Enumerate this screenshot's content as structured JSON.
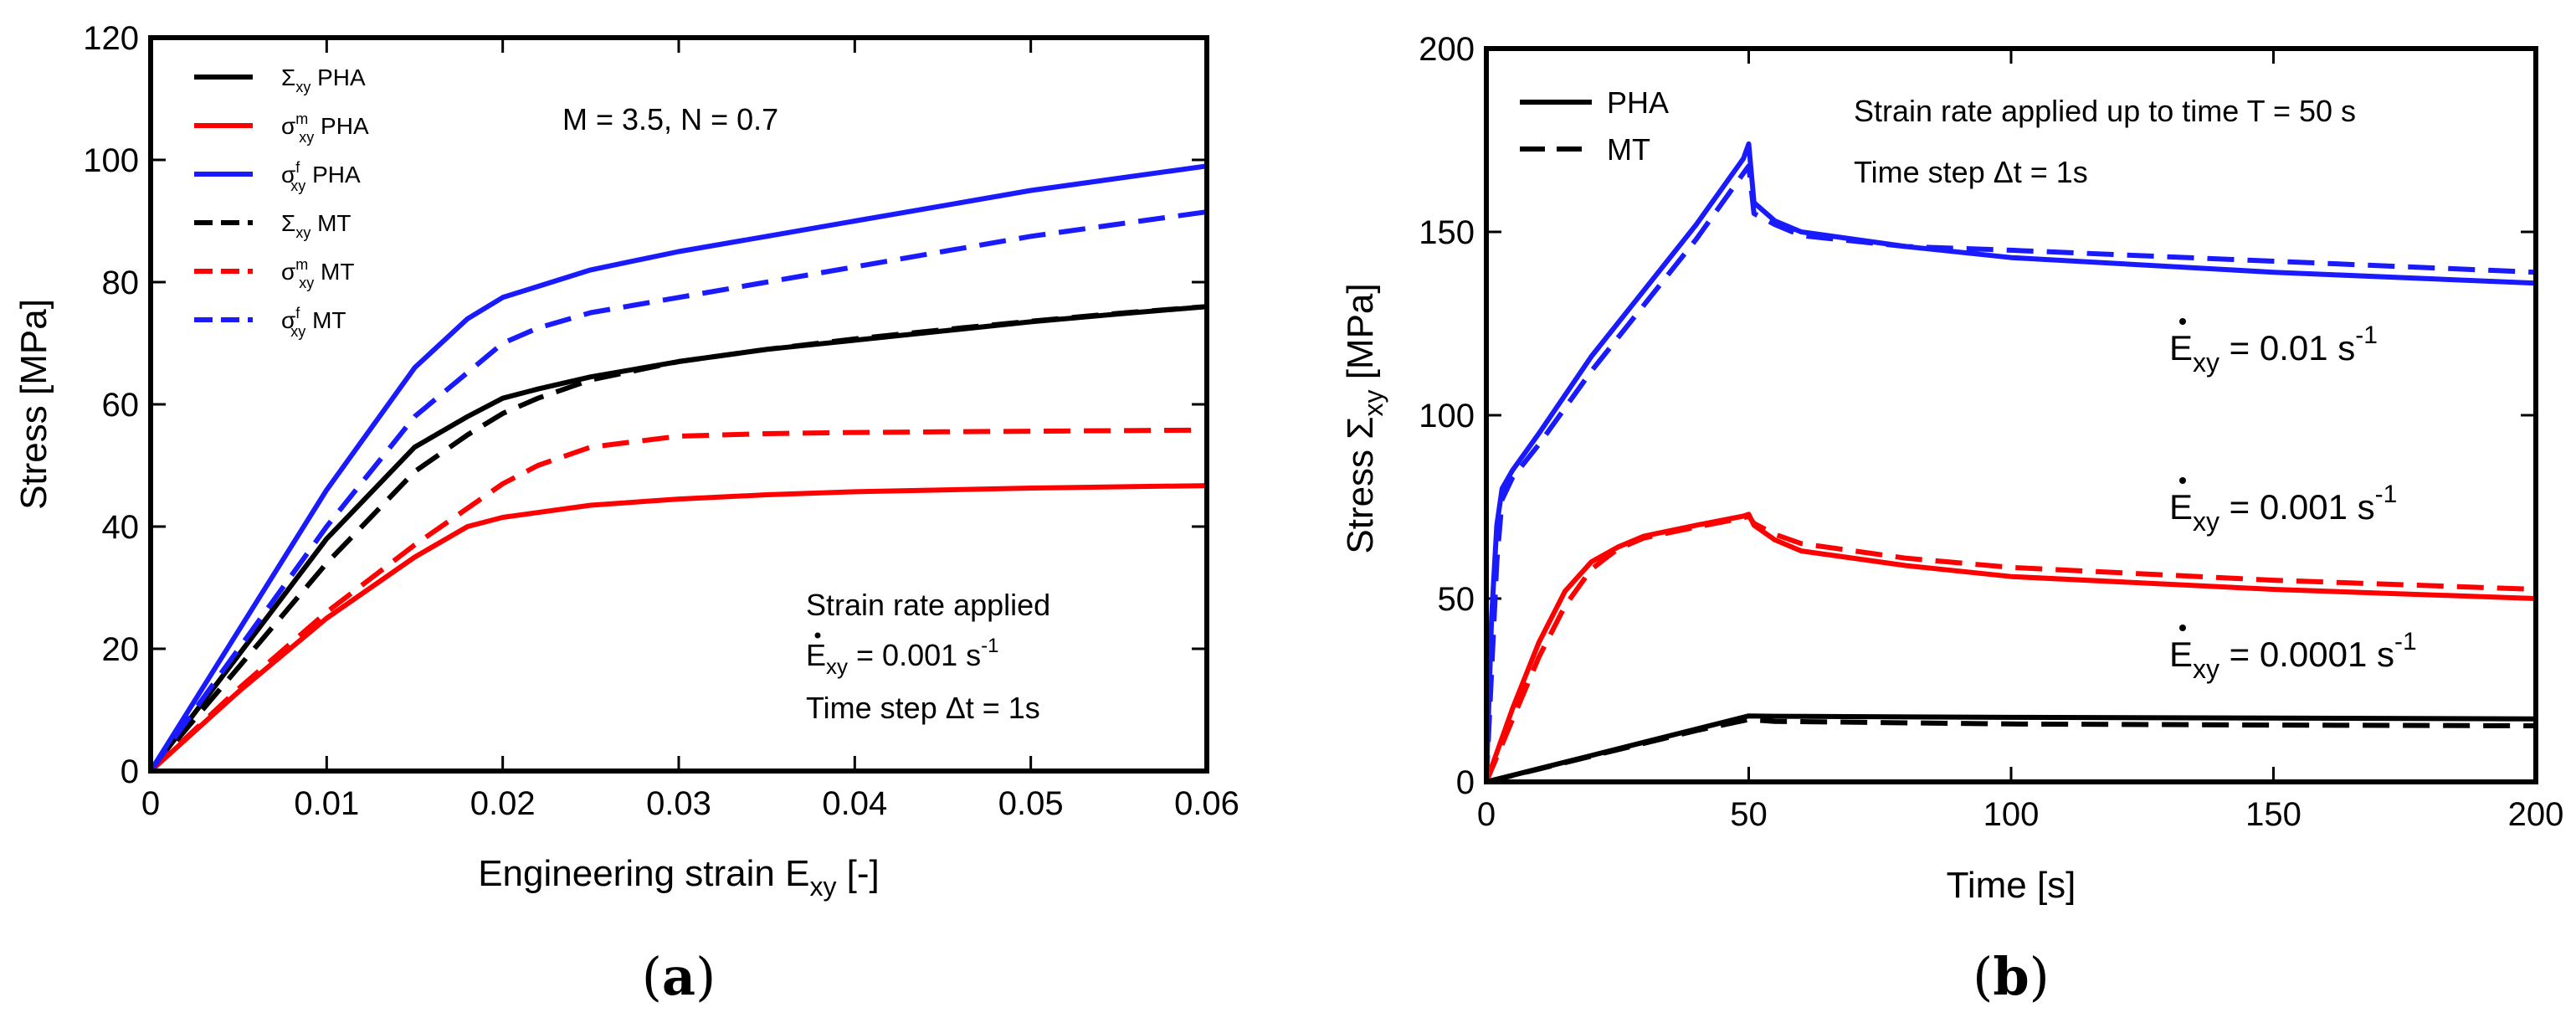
{
  "colors": {
    "black": "#000000",
    "red": "#ff0000",
    "blue": "#1a1aff"
  },
  "chart_data": [
    {
      "type": "line",
      "panel": "a",
      "panel_label": "(a)",
      "panel_letter": "a",
      "xlabel": "Engineering strain E",
      "xlabel_sub": "xy",
      "xlabel_suffix": " [-]",
      "ylabel": "Stress [MPa]",
      "xlim": [
        0,
        0.06
      ],
      "ylim": [
        0,
        120
      ],
      "xticks": [
        0,
        0.01,
        0.02,
        0.03,
        0.04,
        0.05,
        0.06
      ],
      "xtick_labels": [
        "0",
        "0.01",
        "0.02",
        "0.03",
        "0.04",
        "0.05",
        "0.06"
      ],
      "yticks": [
        0,
        20,
        40,
        60,
        80,
        100,
        120
      ],
      "ytick_labels": [
        "0",
        "20",
        "40",
        "60",
        "80",
        "100",
        "120"
      ],
      "annotations": {
        "params": "M = 3.5, N = 0.7",
        "rate_title": "Strain rate applied",
        "rate_symbol": "E",
        "rate_sub": "xy",
        "rate_value": " = 0.001 s",
        "rate_exp": "-1",
        "timestep": "Time step Δt = 1s"
      },
      "series": [
        {
          "name": "Σxy PHA",
          "sym": "Σ",
          "sup": "",
          "sub": "xy",
          "label": "PHA",
          "color": "black",
          "dash": "solid",
          "x": [
            0,
            0.005,
            0.01,
            0.015,
            0.018,
            0.02,
            0.022,
            0.025,
            0.03,
            0.035,
            0.04,
            0.045,
            0.05,
            0.055,
            0.06
          ],
          "y": [
            0,
            19,
            38,
            53,
            58,
            61,
            62.5,
            64.5,
            67,
            69,
            70.5,
            72,
            73.5,
            74.8,
            76
          ]
        },
        {
          "name": "σxy^m PHA",
          "sym": "σ",
          "sup": "m",
          "sub": "xy",
          "label": "PHA",
          "color": "red",
          "dash": "solid",
          "x": [
            0,
            0.005,
            0.01,
            0.015,
            0.018,
            0.02,
            0.025,
            0.03,
            0.035,
            0.04,
            0.045,
            0.05,
            0.055,
            0.06
          ],
          "y": [
            0,
            13,
            25,
            35,
            40,
            41.5,
            43.5,
            44.5,
            45.2,
            45.7,
            46,
            46.3,
            46.5,
            46.7
          ]
        },
        {
          "name": "σxy^f PHA",
          "sym": "σ",
          "sup": "f",
          "sub": "xy",
          "label": "PHA",
          "color": "blue",
          "dash": "solid",
          "x": [
            0,
            0.005,
            0.01,
            0.015,
            0.018,
            0.02,
            0.025,
            0.03,
            0.035,
            0.04,
            0.045,
            0.05,
            0.055,
            0.06
          ],
          "y": [
            0,
            23,
            46,
            66,
            74,
            77.5,
            82,
            85,
            87.5,
            90,
            92.5,
            95,
            97,
            99
          ]
        },
        {
          "name": "Σxy MT",
          "sym": "Σ",
          "sup": "",
          "sub": "xy",
          "label": "MT",
          "color": "black",
          "dash": "dashed",
          "x": [
            0,
            0.005,
            0.01,
            0.015,
            0.018,
            0.02,
            0.022,
            0.025,
            0.03,
            0.035,
            0.04,
            0.045,
            0.05,
            0.055,
            0.06
          ],
          "y": [
            0,
            17,
            34,
            49,
            55,
            58.5,
            61,
            64,
            67,
            69,
            70.7,
            72.2,
            73.6,
            74.9,
            76
          ]
        },
        {
          "name": "σxy^m MT",
          "sym": "σ",
          "sup": "m",
          "sub": "xy",
          "label": "MT",
          "color": "red",
          "dash": "dashed",
          "x": [
            0,
            0.005,
            0.01,
            0.015,
            0.02,
            0.022,
            0.025,
            0.03,
            0.035,
            0.04,
            0.045,
            0.05,
            0.055,
            0.06
          ],
          "y": [
            0,
            13.5,
            26,
            37,
            47,
            50,
            53,
            54.8,
            55.2,
            55.4,
            55.5,
            55.6,
            55.7,
            55.8
          ]
        },
        {
          "name": "σxy^f MT",
          "sym": "σ",
          "sup": "f",
          "sub": "xy",
          "label": "MT",
          "color": "blue",
          "dash": "dashed",
          "x": [
            0,
            0.005,
            0.01,
            0.015,
            0.02,
            0.022,
            0.025,
            0.03,
            0.035,
            0.04,
            0.045,
            0.05,
            0.055,
            0.06
          ],
          "y": [
            0,
            20,
            40,
            58,
            70,
            72.5,
            75,
            77.5,
            80,
            82.5,
            85,
            87.5,
            89.5,
            91.5
          ]
        }
      ]
    },
    {
      "type": "line",
      "panel": "b",
      "panel_label": "(b)",
      "panel_letter": "b",
      "xlabel": "Time [s]",
      "ylabel": "Stress Σ",
      "ylabel_sub": "xy",
      "ylabel_suffix": " [MPa]",
      "xlim": [
        0,
        200
      ],
      "ylim": [
        0,
        200
      ],
      "xticks": [
        0,
        50,
        100,
        150,
        200
      ],
      "xtick_labels": [
        "0",
        "50",
        "100",
        "150",
        "200"
      ],
      "yticks": [
        0,
        50,
        100,
        150,
        200
      ],
      "ytick_labels": [
        "0",
        "50",
        "100",
        "150",
        "200"
      ],
      "legend": [
        {
          "label": "PHA",
          "dash": "solid"
        },
        {
          "label": "MT",
          "dash": "dashed"
        }
      ],
      "annotations": {
        "line1": "Strain rate applied up to time T = 50 s",
        "line2": "Time step Δt = 1s"
      },
      "rate_labels": [
        {
          "symbol": "E",
          "sub": "xy",
          "value": " = 0.01 s",
          "exp": "-1"
        },
        {
          "symbol": "E",
          "sub": "xy",
          "value": " = 0.001 s",
          "exp": "-1"
        },
        {
          "symbol": "E",
          "sub": "xy",
          "value": " = 0.0001 s",
          "exp": "-1"
        }
      ],
      "series": [
        {
          "name": "0.01 PHA",
          "color": "blue",
          "dash": "solid",
          "x": [
            0,
            1,
            2,
            3,
            5,
            10,
            20,
            30,
            40,
            49,
            50,
            51,
            55,
            60,
            80,
            100,
            150,
            200
          ],
          "y": [
            0,
            45,
            70,
            80,
            85,
            95,
            116,
            134,
            152,
            170,
            174,
            158,
            153,
            150,
            146,
            143,
            139,
            136
          ]
        },
        {
          "name": "0.01 MT",
          "color": "blue",
          "dash": "dashed",
          "x": [
            0,
            2,
            3,
            5,
            10,
            20,
            30,
            40,
            49,
            50,
            51,
            55,
            60,
            80,
            100,
            150,
            200
          ],
          "y": [
            0,
            60,
            77,
            83,
            92,
            112,
            130,
            148,
            166,
            168,
            155,
            152,
            149,
            146,
            145,
            142,
            139
          ]
        },
        {
          "name": "0.001 PHA",
          "color": "red",
          "dash": "solid",
          "x": [
            0,
            5,
            10,
            15,
            20,
            25,
            30,
            40,
            49,
            50,
            51,
            55,
            60,
            80,
            100,
            150,
            200
          ],
          "y": [
            0,
            20,
            38,
            52,
            60,
            64,
            67,
            70,
            72.5,
            73,
            70,
            66,
            63,
            59,
            56,
            52.5,
            50
          ]
        },
        {
          "name": "0.001 MT",
          "color": "red",
          "dash": "dashed",
          "x": [
            0,
            5,
            10,
            15,
            20,
            25,
            30,
            40,
            49,
            50,
            51,
            55,
            60,
            80,
            100,
            150,
            200
          ],
          "y": [
            0,
            17,
            34,
            48,
            58,
            63.5,
            66.5,
            69.5,
            72,
            72.5,
            70.5,
            67.5,
            65,
            61,
            58.5,
            55,
            52.5
          ]
        },
        {
          "name": "0.0001 PHA",
          "color": "black",
          "dash": "solid",
          "x": [
            0,
            10,
            20,
            30,
            40,
            50,
            55,
            100,
            150,
            200
          ],
          "y": [
            0,
            3.6,
            7.2,
            10.8,
            14.4,
            18,
            17.9,
            17.6,
            17.4,
            17.2
          ]
        },
        {
          "name": "0.0001 MT",
          "color": "black",
          "dash": "dashed",
          "x": [
            0,
            10,
            20,
            30,
            40,
            50,
            55,
            100,
            150,
            200
          ],
          "y": [
            0,
            3.5,
            7,
            10.5,
            14,
            17,
            16.5,
            15.8,
            15.5,
            15.3
          ]
        }
      ]
    }
  ]
}
